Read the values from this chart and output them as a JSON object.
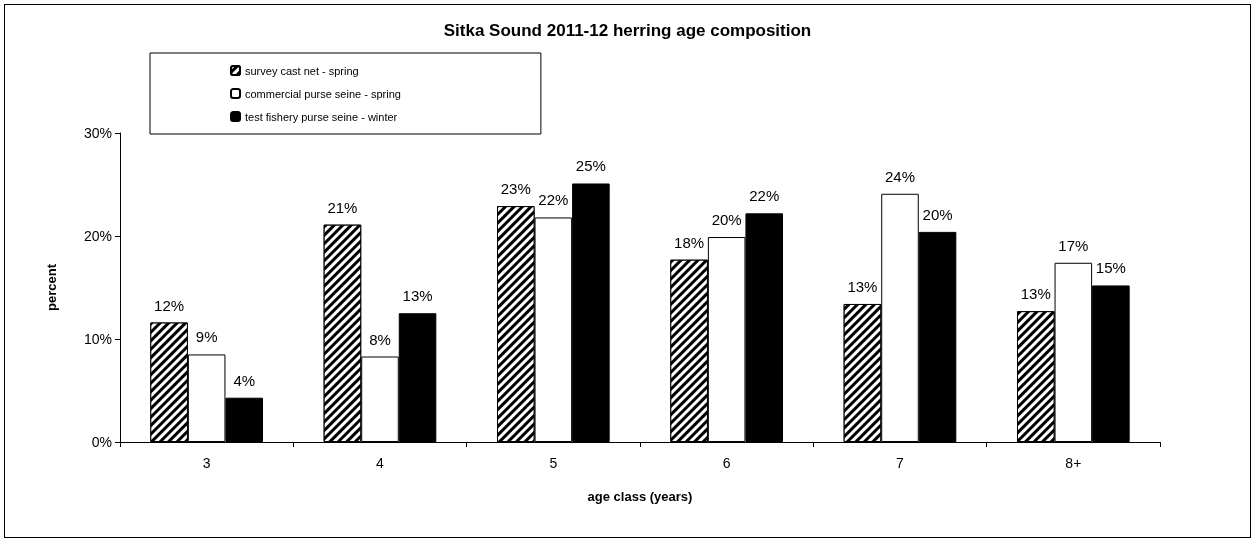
{
  "chart_data": {
    "type": "bar",
    "title": "Sitka Sound 2011-12 herring age composition",
    "xlabel": "age class (years)",
    "ylabel": "percent",
    "categories": [
      "3",
      "4",
      "5",
      "6",
      "7",
      "8+"
    ],
    "series": [
      {
        "name": "survey cast net - spring",
        "color": "#000000",
        "values": [
          11.6,
          21.1,
          22.9,
          17.7,
          13.4,
          12.7
        ],
        "value_labels": [
          "12%",
          "21%",
          "23%",
          "18%",
          "13%",
          "13%"
        ]
      },
      {
        "name": "commercial purse seine - spring",
        "color": "#ffffff",
        "values": [
          8.5,
          8.3,
          21.8,
          19.9,
          24.1,
          17.4
        ],
        "value_labels": [
          "9%",
          "8%",
          "22%",
          "20%",
          "24%",
          "17%"
        ]
      },
      {
        "name": "test fishery purse seine - winter",
        "color": "#000000",
        "values": [
          4.3,
          12.5,
          25.1,
          22.2,
          20.4,
          15.2
        ],
        "value_labels": [
          "4%",
          "13%",
          "25%",
          "22%",
          "20%",
          "15%"
        ]
      }
    ],
    "ylim": [
      0,
      30
    ],
    "yticks": [
      {
        "value": 0,
        "label": "0%"
      },
      {
        "value": 10,
        "label": "10%"
      },
      {
        "value": 20,
        "label": "20%"
      },
      {
        "value": 30,
        "label": "30%"
      }
    ],
    "legend": "top left"
  }
}
